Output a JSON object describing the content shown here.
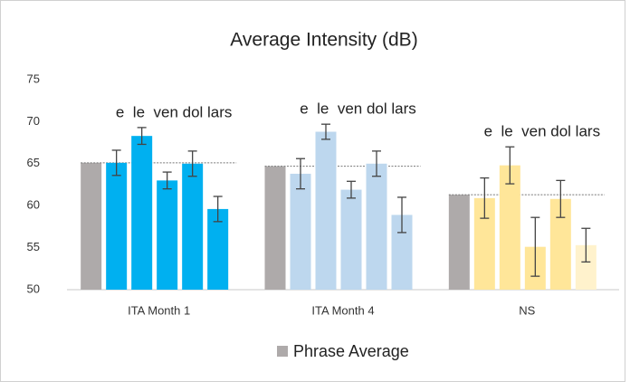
{
  "chart_data": {
    "type": "bar",
    "title": "Average Intensity (dB)",
    "categories": [
      "ITA Month 1",
      "ITA Month 4",
      "NS"
    ],
    "annotation": "e  le  ven dol lars",
    "series": [
      {
        "name": "Phrase Average",
        "color": "#aeaaaa",
        "values": [
          65.1,
          64.7,
          61.3
        ]
      }
    ],
    "syllables": {
      "values": [
        [
          65.1,
          68.3,
          63.0,
          65.0,
          59.6
        ],
        [
          63.8,
          68.8,
          61.9,
          65.0,
          58.9
        ],
        [
          60.9,
          64.8,
          55.1,
          60.8,
          55.3
        ]
      ],
      "errors": [
        [
          1.5,
          1.0,
          1.0,
          1.5,
          1.5
        ],
        [
          1.8,
          0.9,
          1.0,
          1.5,
          2.1
        ],
        [
          2.4,
          2.2,
          3.5,
          2.2,
          2.0
        ]
      ],
      "colors": [
        [
          "#00b0f0",
          "#00b0f0",
          "#00b0f0",
          "#00b0f0",
          "#00b0f0"
        ],
        [
          "#bdd7ee",
          "#bdd7ee",
          "#bdd7ee",
          "#bdd7ee",
          "#bdd7ee"
        ],
        [
          "#ffe699",
          "#ffe699",
          "#ffe699",
          "#ffe699",
          "#fff2cc"
        ]
      ]
    },
    "ylim": [
      50,
      75
    ],
    "yticks": [
      50,
      55,
      60,
      65,
      70,
      75
    ],
    "legend": "bottom"
  }
}
